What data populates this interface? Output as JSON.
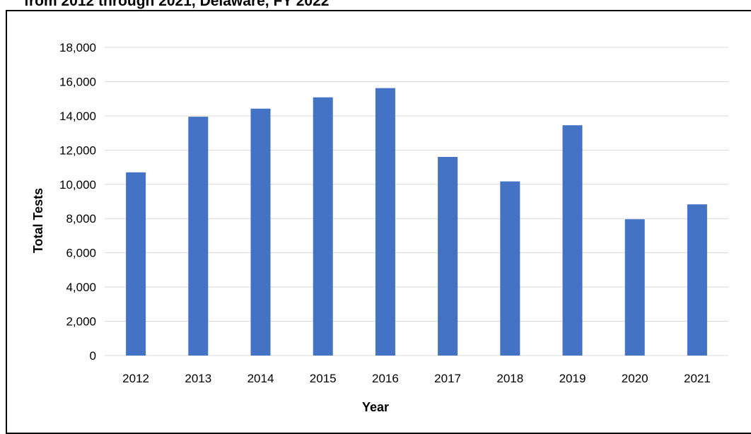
{
  "page": {
    "title_fragment": "from 2012 through 2021, Delaware, FY 2022"
  },
  "chart_data": {
    "type": "bar",
    "title": "",
    "xlabel": "Year",
    "ylabel": "Total Tests",
    "categories": [
      "2012",
      "2013",
      "2014",
      "2015",
      "2016",
      "2017",
      "2018",
      "2019",
      "2020",
      "2021"
    ],
    "values": [
      10700,
      13950,
      14420,
      15080,
      15620,
      11600,
      10170,
      13450,
      7960,
      8830
    ],
    "ylim": [
      0,
      18000
    ],
    "yticks": [
      0,
      2000,
      4000,
      6000,
      8000,
      10000,
      12000,
      14000,
      16000,
      18000
    ],
    "ytick_labels": [
      "0",
      "2,000",
      "4,000",
      "6,000",
      "8,000",
      "10,000",
      "12,000",
      "14,000",
      "16,000",
      "18,000"
    ],
    "grid": true,
    "bar_color": "#4472C4",
    "grid_color": "#D9D9D9"
  }
}
